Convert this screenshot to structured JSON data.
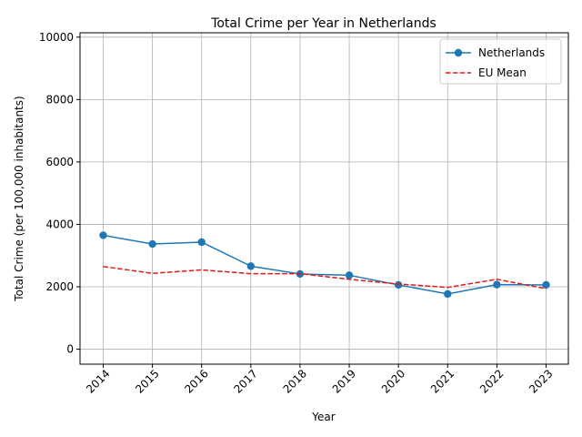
{
  "chart_data": {
    "type": "line",
    "title": "Total Crime per Year in Netherlands",
    "xlabel": "Year",
    "ylabel": "Total Crime (per 100,000 inhabitants)",
    "x": [
      "2014",
      "2015",
      "2016",
      "2017",
      "2018",
      "2019",
      "2020",
      "2021",
      "2022",
      "2023"
    ],
    "yticks": [
      "0",
      "2000",
      "4000",
      "6000",
      "8000",
      "10000"
    ],
    "ylim": [
      -480,
      10140
    ],
    "grid": true,
    "legend_position": "top-right",
    "series": [
      {
        "name": "Netherlands",
        "color": "#1f77b4",
        "style": "solid",
        "marker": "circle",
        "values": [
          3650,
          3370,
          3430,
          2660,
          2410,
          2370,
          2060,
          1770,
          2070,
          2060
        ]
      },
      {
        "name": "EU Mean",
        "color": "#e31a1c",
        "style": "dashed",
        "marker": "none",
        "values": [
          2650,
          2430,
          2540,
          2420,
          2420,
          2240,
          2090,
          1980,
          2240,
          1940
        ]
      }
    ]
  }
}
